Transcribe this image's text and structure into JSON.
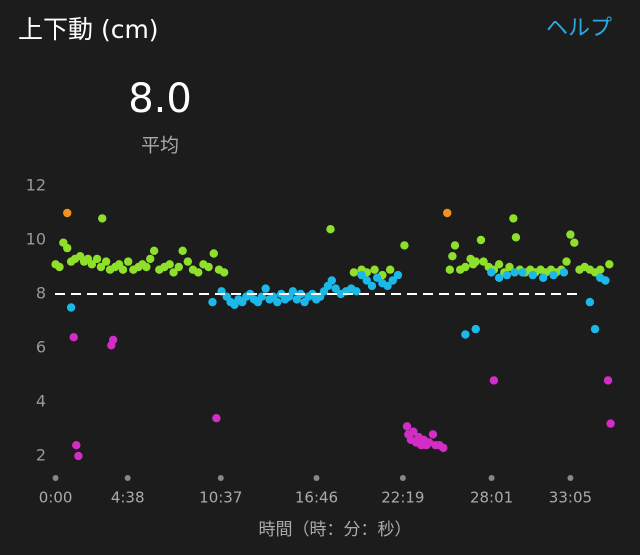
{
  "header": {
    "title": "上下動 (cm)",
    "help": "ヘルプ"
  },
  "average": {
    "value": 8.0,
    "label": "8.0"
  },
  "average_caption": "平均",
  "chart_data": {
    "type": "scatter",
    "x_label": "時間（時：分：秒）",
    "xlim": [
      -60,
      2180
    ],
    "ylim": [
      1.6,
      12.4
    ],
    "xticks": [
      {
        "value": 0,
        "label": "0:00"
      },
      {
        "value": 278,
        "label": "4:38"
      },
      {
        "value": 637,
        "label": "10:37"
      },
      {
        "value": 1006,
        "label": "16:46"
      },
      {
        "value": 1339,
        "label": "22:19"
      },
      {
        "value": 1681,
        "label": "28:01"
      },
      {
        "value": 1985,
        "label": "33:05"
      }
    ],
    "yticks": [
      2,
      4,
      6,
      8,
      10,
      12
    ],
    "series": [
      {
        "color": "#8ee02a",
        "x": [
          0,
          15,
          30,
          45,
          60,
          75,
          95,
          110,
          125,
          140,
          160,
          175,
          195,
          210,
          230,
          245,
          260,
          280,
          300,
          320,
          335,
          350,
          365,
          380,
          400,
          420,
          440,
          455,
          475,
          490,
          510,
          530,
          550,
          570,
          590,
          610,
          630,
          650,
          180,
          1060,
          1150,
          1180,
          1200,
          1230,
          1260,
          1290,
          1345,
          1520,
          1530,
          1540,
          1560,
          1580,
          1600,
          1610,
          1620,
          1640,
          1650,
          1670,
          1690,
          1710,
          1730,
          1750,
          1765,
          1775,
          1790,
          1810,
          1830,
          1850,
          1870,
          1890,
          1910,
          1930,
          1950,
          1970,
          1985,
          2000,
          2020,
          2040,
          2060,
          2080,
          2100,
          2135
        ],
        "values": [
          9.1,
          9.0,
          9.9,
          9.7,
          9.2,
          9.3,
          9.4,
          9.2,
          9.3,
          9.1,
          9.3,
          9.0,
          9.2,
          8.9,
          9.0,
          9.1,
          8.9,
          9.2,
          8.9,
          9.0,
          9.1,
          9.0,
          9.3,
          9.6,
          8.9,
          9.0,
          9.1,
          8.8,
          9.0,
          9.6,
          9.2,
          8.9,
          8.8,
          9.1,
          9.0,
          9.5,
          8.9,
          8.8,
          10.8,
          10.4,
          8.8,
          8.9,
          8.8,
          8.9,
          8.7,
          8.9,
          9.8,
          8.9,
          9.4,
          9.8,
          8.9,
          9.0,
          9.3,
          9.1,
          9.2,
          10.0,
          9.2,
          9.0,
          8.9,
          9.1,
          8.8,
          9.0,
          10.8,
          10.1,
          8.9,
          8.8,
          8.9,
          8.8,
          8.9,
          8.8,
          8.9,
          8.8,
          8.9,
          9.2,
          10.2,
          9.9,
          8.9,
          9.0,
          8.9,
          8.8,
          8.9,
          9.1
        ]
      },
      {
        "color": "#1cb9e8",
        "x": [
          60,
          605,
          640,
          660,
          675,
          690,
          705,
          720,
          735,
          750,
          765,
          780,
          795,
          810,
          825,
          840,
          855,
          870,
          885,
          900,
          915,
          930,
          945,
          960,
          975,
          990,
          1005,
          1020,
          1035,
          1050,
          1065,
          1080,
          1100,
          1120,
          1140,
          1160,
          1180,
          1200,
          1220,
          1240,
          1260,
          1280,
          1300,
          1320,
          1580,
          1620,
          1680,
          1710,
          1740,
          1770,
          1800,
          1840,
          1880,
          1920,
          1960,
          2060,
          2080,
          2100,
          2120
        ],
        "values": [
          7.5,
          7.7,
          8.1,
          7.9,
          7.7,
          7.6,
          7.8,
          7.7,
          7.9,
          8.0,
          7.8,
          7.7,
          7.9,
          8.2,
          7.8,
          7.9,
          7.7,
          8.0,
          7.8,
          7.9,
          8.1,
          7.8,
          8.0,
          7.7,
          7.9,
          8.0,
          7.8,
          7.9,
          8.1,
          8.3,
          8.5,
          8.2,
          8.0,
          8.1,
          8.2,
          8.1,
          8.7,
          8.5,
          8.3,
          8.6,
          8.4,
          8.3,
          8.5,
          8.7,
          6.5,
          6.7,
          8.8,
          8.6,
          8.7,
          8.8,
          8.8,
          8.7,
          8.6,
          8.7,
          8.8,
          7.7,
          6.7,
          8.6,
          8.5
        ]
      },
      {
        "color": "#d42cc6",
        "x": [
          70,
          80,
          88,
          215,
          222,
          620,
          1355,
          1360,
          1370,
          1380,
          1390,
          1400,
          1410,
          1420,
          1430,
          1440,
          1455,
          1465,
          1480,
          1495,
          1690,
          2130,
          2140
        ],
        "values": [
          6.4,
          2.4,
          2.0,
          6.1,
          6.3,
          3.4,
          3.1,
          2.8,
          2.6,
          2.9,
          2.5,
          2.7,
          2.4,
          2.6,
          2.4,
          2.5,
          2.8,
          2.4,
          2.4,
          2.3,
          4.8,
          4.8,
          3.2
        ]
      },
      {
        "color": "#f0921e",
        "x": [
          45,
          1510
        ],
        "values": [
          11.0,
          11.0
        ]
      }
    ]
  }
}
